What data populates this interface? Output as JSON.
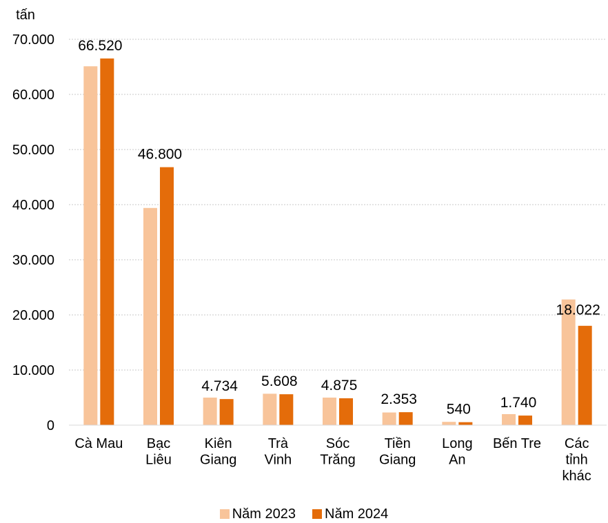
{
  "chart_data": {
    "type": "bar",
    "unit_label": "tấn",
    "categories": [
      [
        "Cà Mau"
      ],
      [
        "Bạc",
        "Liêu"
      ],
      [
        "Kiên",
        "Giang"
      ],
      [
        "Trà",
        "Vinh"
      ],
      [
        "Sóc",
        "Trăng"
      ],
      [
        "Tiền",
        "Giang"
      ],
      [
        "Long",
        "An"
      ],
      [
        "Bến Tre"
      ],
      [
        "Các",
        "tỉnh",
        "khác"
      ]
    ],
    "series": [
      {
        "name": "Năm 2023",
        "color": "#F8C49A",
        "values": [
          65100,
          39400,
          5000,
          5700,
          5000,
          2300,
          600,
          2000,
          22800
        ]
      },
      {
        "name": "Năm 2024",
        "color": "#E46C0A",
        "values": [
          66520,
          46800,
          4734,
          5608,
          4875,
          2353,
          540,
          1740,
          18022
        ]
      }
    ],
    "data_labels": [
      "66.520",
      "46.800",
      "4.734",
      "5.608",
      "4.875",
      "2.353",
      "540",
      "1.740",
      "18.022"
    ],
    "yticks": [
      "0",
      "10.000",
      "20.000",
      "30.000",
      "40.000",
      "50.000",
      "60.000",
      "70.000"
    ],
    "ylim": [
      0,
      70000
    ],
    "grid": true,
    "legend_position": "bottom"
  }
}
